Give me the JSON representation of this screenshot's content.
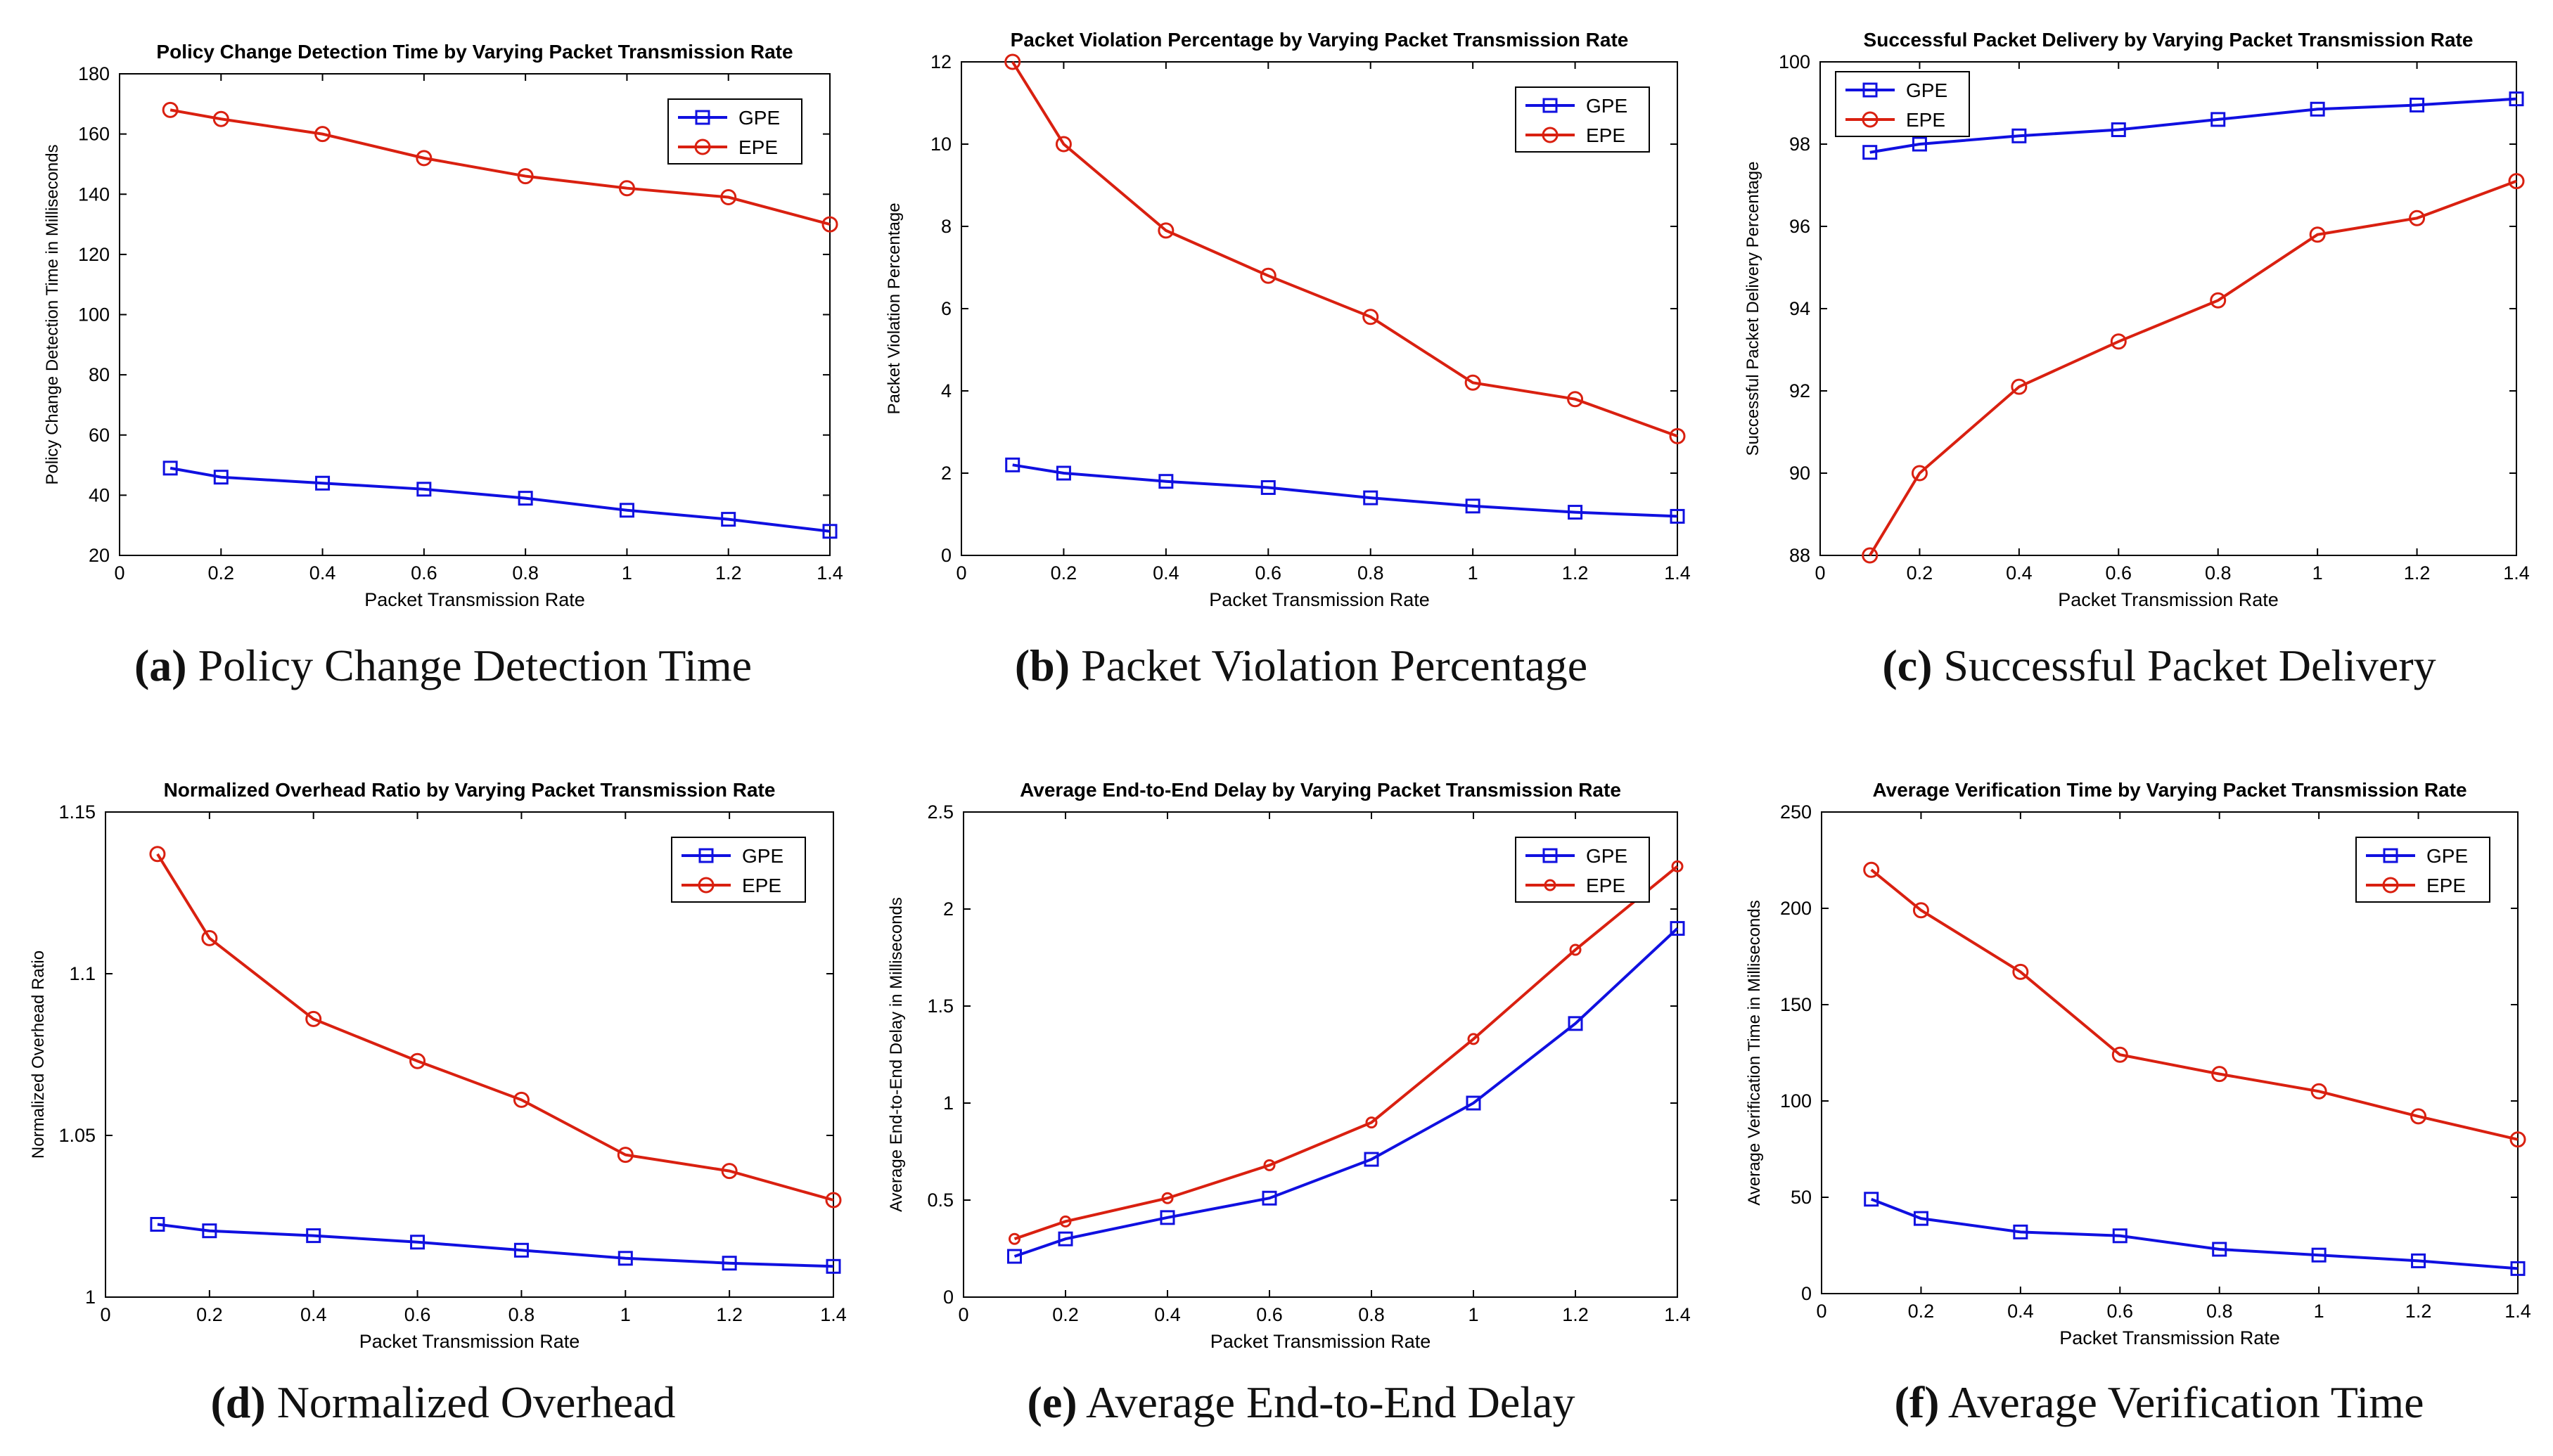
{
  "figure": {
    "captions": [
      {
        "letter": "(a)",
        "text": "Policy Change Detection Time"
      },
      {
        "letter": "(b)",
        "text": "Packet Violation Percentage"
      },
      {
        "letter": "(c)",
        "text": "Successful Packet Delivery"
      },
      {
        "letter": "(d)",
        "text": "Normalized Overhead"
      },
      {
        "letter": "(e)",
        "text": "Average End-to-End Delay"
      },
      {
        "letter": "(f)",
        "text": "Average Verification Time"
      }
    ]
  },
  "colors": {
    "gpe": "#1010e0",
    "epe": "#d92010",
    "axis": "#000000"
  },
  "chart_data": [
    {
      "type": "line",
      "title": "Policy Change Detection Time by Varying Packet Transmission Rate",
      "xlabel": "Packet Transmission Rate",
      "ylabel": "Policy Change Detection Time in Milliseconds",
      "xlim": [
        0,
        1.4
      ],
      "ylim": [
        20,
        180
      ],
      "xticks": [
        "0",
        "0.2",
        "0.4",
        "0.6",
        "0.8",
        "1",
        "1.2",
        "1.4"
      ],
      "yticks": [
        "20",
        "40",
        "60",
        "80",
        "100",
        "120",
        "140",
        "160",
        "180"
      ],
      "legend": "top-right",
      "x": [
        0.1,
        0.2,
        0.4,
        0.6,
        0.8,
        1.0,
        1.2,
        1.4
      ],
      "series": [
        {
          "name": "GPE",
          "marker": "square",
          "values": [
            49,
            46,
            44,
            42,
            39,
            35,
            32,
            28
          ]
        },
        {
          "name": "EPE",
          "marker": "circle",
          "values": [
            168,
            165,
            160,
            152,
            146,
            142,
            139,
            130
          ]
        }
      ]
    },
    {
      "type": "line",
      "title": "Packet Violation Percentage by Varying Packet Transmission Rate",
      "xlabel": "Packet Transmission Rate",
      "ylabel": "Packet Violation Percentage",
      "xlim": [
        0,
        1.4
      ],
      "ylim": [
        0,
        12
      ],
      "xticks": [
        "0",
        "0.2",
        "0.4",
        "0.6",
        "0.8",
        "1",
        "1.2",
        "1.4"
      ],
      "yticks": [
        "0",
        "2",
        "4",
        "6",
        "8",
        "10",
        "12"
      ],
      "legend": "top-right",
      "x": [
        0.1,
        0.2,
        0.4,
        0.6,
        0.8,
        1.0,
        1.2,
        1.4
      ],
      "series": [
        {
          "name": "GPE",
          "marker": "square",
          "values": [
            2.2,
            2.0,
            1.8,
            1.65,
            1.4,
            1.2,
            1.05,
            0.95
          ]
        },
        {
          "name": "EPE",
          "marker": "circle",
          "values": [
            12,
            10,
            7.9,
            6.8,
            5.8,
            4.2,
            3.8,
            2.9
          ]
        }
      ]
    },
    {
      "type": "line",
      "title": "Successful Packet Delivery by Varying Packet Transmission Rate",
      "xlabel": "Packet Transmission Rate",
      "ylabel": "Successful Packet Delivery Percentage",
      "xlim": [
        0,
        1.4
      ],
      "ylim": [
        88,
        100
      ],
      "xticks": [
        "0",
        "0.2",
        "0.4",
        "0.6",
        "0.8",
        "1",
        "1.2",
        "1.4"
      ],
      "yticks": [
        "88",
        "90",
        "92",
        "94",
        "96",
        "98",
        "100"
      ],
      "legend": "top-left",
      "x": [
        0.1,
        0.2,
        0.4,
        0.6,
        0.8,
        1.0,
        1.2,
        1.4
      ],
      "series": [
        {
          "name": "GPE",
          "marker": "square",
          "values": [
            97.8,
            98.0,
            98.2,
            98.35,
            98.6,
            98.85,
            98.95,
            99.1
          ]
        },
        {
          "name": "EPE",
          "marker": "circle",
          "values": [
            88,
            90,
            92.1,
            93.2,
            94.2,
            95.8,
            96.2,
            97.1
          ]
        }
      ]
    },
    {
      "type": "line",
      "title": "Normalized Overhead Ratio by Varying Packet Transmission Rate",
      "xlabel": "Packet Transmission Rate",
      "ylabel": "Normalized Overhead Ratio",
      "xlim": [
        0,
        1.4
      ],
      "ylim": [
        1,
        1.15
      ],
      "xticks": [
        "0",
        "0.2",
        "0.4",
        "0.6",
        "0.8",
        "1",
        "1.2",
        "1.4"
      ],
      "yticks": [
        "1",
        "1.05",
        "1.1",
        "1.15"
      ],
      "yticksAt": [
        1,
        1.05,
        1.1,
        1.15
      ],
      "legend": "top-right",
      "x": [
        0.1,
        0.2,
        0.4,
        0.6,
        0.8,
        1.0,
        1.2,
        1.4
      ],
      "series": [
        {
          "name": "GPE",
          "marker": "square",
          "values": [
            1.0225,
            1.0205,
            1.019,
            1.017,
            1.0145,
            1.012,
            1.0105,
            1.0095
          ]
        },
        {
          "name": "EPE",
          "marker": "circle",
          "values": [
            1.137,
            1.111,
            1.086,
            1.073,
            1.061,
            1.044,
            1.039,
            1.03
          ]
        }
      ]
    },
    {
      "type": "line",
      "title": "Average End-to-End Delay by Varying Packet Transmission Rate",
      "xlabel": "Packet Transmission Rate",
      "ylabel": "Average End-to-End Delay in Milliseconds",
      "xlim": [
        0,
        1.4
      ],
      "ylim": [
        0,
        2.5
      ],
      "xticks": [
        "0",
        "0.2",
        "0.4",
        "0.6",
        "0.8",
        "1",
        "1.2",
        "1.4"
      ],
      "yticks": [
        "0",
        "0.5",
        "1",
        "1.5",
        "2",
        "2.5"
      ],
      "legend": "top-right",
      "x": [
        0.1,
        0.2,
        0.4,
        0.6,
        0.8,
        1.0,
        1.2,
        1.4
      ],
      "series": [
        {
          "name": "GPE",
          "marker": "square",
          "values": [
            0.21,
            0.3,
            0.41,
            0.51,
            0.71,
            1.0,
            1.41,
            1.9
          ]
        },
        {
          "name": "EPE",
          "marker": "dot",
          "values": [
            0.3,
            0.39,
            0.51,
            0.68,
            0.9,
            1.33,
            1.79,
            2.22
          ]
        }
      ]
    },
    {
      "type": "line",
      "title": "Average Verification Time by Varying Packet Transmission Rate",
      "xlabel": "Packet Transmission Rate",
      "ylabel": "Average Verification Time in Milliseconds",
      "xlim": [
        0,
        1.4
      ],
      "ylim": [
        0,
        250
      ],
      "xticks": [
        "0",
        "0.2",
        "0.4",
        "0.6",
        "0.8",
        "1",
        "1.2",
        "1.4"
      ],
      "yticks": [
        "0",
        "50",
        "100",
        "150",
        "200",
        "250"
      ],
      "legend": "top-right",
      "x": [
        0.1,
        0.2,
        0.4,
        0.6,
        0.8,
        1.0,
        1.2,
        1.4
      ],
      "series": [
        {
          "name": "GPE",
          "marker": "square",
          "values": [
            49,
            39,
            32,
            30,
            23,
            20,
            17,
            13
          ]
        },
        {
          "name": "EPE",
          "marker": "circle",
          "values": [
            220,
            199,
            167,
            124,
            114,
            105,
            92,
            80
          ]
        }
      ]
    }
  ]
}
